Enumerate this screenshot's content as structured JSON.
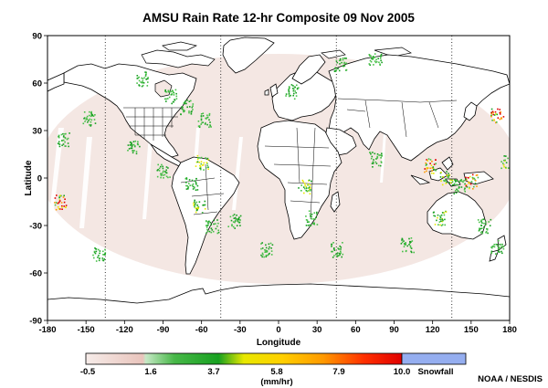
{
  "title": "AMSU Rain Rate 12-hr Composite  09 Nov 2005",
  "axes": {
    "xlabel": "Longitude",
    "ylabel": "Latitude",
    "x_ticks": [
      "-180",
      "-150",
      "-120",
      "-90",
      "-60",
      "-30",
      "0",
      "30",
      "60",
      "90",
      "120",
      "150",
      "180"
    ],
    "y_ticks": [
      "90",
      "60",
      "30",
      "0",
      "-30",
      "-60",
      "-90"
    ],
    "xlim": [
      -180,
      180
    ],
    "ylim": [
      -90,
      90
    ]
  },
  "colorbar": {
    "labels": [
      "-0.5",
      "1.6",
      "3.7",
      "5.8",
      "7.9",
      "10.0"
    ],
    "snowfall_label": "Snowfall",
    "units": "(mm/hr)",
    "colors": [
      "#f4e2dd",
      "#48b848",
      "#17a020",
      "#e8e800",
      "#ff9a00",
      "#e00000",
      "#95aef0"
    ]
  },
  "credit": "NOAA / NESDIS",
  "map": {
    "ocean_background": "#f4e7e3",
    "grid_meridians": [
      -135,
      -45,
      45,
      135
    ],
    "rain_colors": [
      "#17a020",
      "#48c048",
      "#e8e800",
      "#ff9a00",
      "#e00000"
    ],
    "rain_clusters": [
      {
        "lon": -107,
        "lat": 63,
        "rate": 1.6
      },
      {
        "lon": -84,
        "lat": 52,
        "rate": 1.6
      },
      {
        "lon": -72,
        "lat": 45,
        "rate": 3.7
      },
      {
        "lon": -58,
        "lat": 37,
        "rate": 3.7
      },
      {
        "lon": -148,
        "lat": 38,
        "rate": 1.6
      },
      {
        "lon": -168,
        "lat": 25,
        "rate": 1.6
      },
      {
        "lon": -113,
        "lat": 20,
        "rate": 1.6
      },
      {
        "lon": -90,
        "lat": 5,
        "rate": 3.7
      },
      {
        "lon": -60,
        "lat": 10,
        "rate": 5.8
      },
      {
        "lon": -68,
        "lat": -3,
        "rate": 3.7
      },
      {
        "lon": -62,
        "lat": -18,
        "rate": 5.8
      },
      {
        "lon": -52,
        "lat": -30,
        "rate": 3.7
      },
      {
        "lon": -35,
        "lat": -27,
        "rate": 3.7
      },
      {
        "lon": -170,
        "lat": -15,
        "rate": 7.9
      },
      {
        "lon": -140,
        "lat": -48,
        "rate": 1.6
      },
      {
        "lon": -10,
        "lat": -45,
        "rate": 1.6
      },
      {
        "lon": 10,
        "lat": 55,
        "rate": 1.6
      },
      {
        "lon": 20,
        "lat": -5,
        "rate": 5.8
      },
      {
        "lon": 25,
        "lat": -25,
        "rate": 3.7
      },
      {
        "lon": 45,
        "lat": -45,
        "rate": 1.6
      },
      {
        "lon": 75,
        "lat": 12,
        "rate": 3.7
      },
      {
        "lon": 75,
        "lat": 75,
        "rate": 1.6
      },
      {
        "lon": 48,
        "lat": 72,
        "rate": 1.6
      },
      {
        "lon": 118,
        "lat": 8,
        "rate": 7.9
      },
      {
        "lon": 130,
        "lat": 0,
        "rate": 5.8
      },
      {
        "lon": 140,
        "lat": -5,
        "rate": 3.7
      },
      {
        "lon": 150,
        "lat": -2,
        "rate": 7.9
      },
      {
        "lon": 125,
        "lat": -25,
        "rate": 5.8
      },
      {
        "lon": 100,
        "lat": -42,
        "rate": 1.6
      },
      {
        "lon": 160,
        "lat": -30,
        "rate": 3.7
      },
      {
        "lon": 170,
        "lat": -43,
        "rate": 1.6
      },
      {
        "lon": 170,
        "lat": 40,
        "rate": 7.9
      },
      {
        "lon": 178,
        "lat": 10,
        "rate": 5.8
      }
    ]
  }
}
